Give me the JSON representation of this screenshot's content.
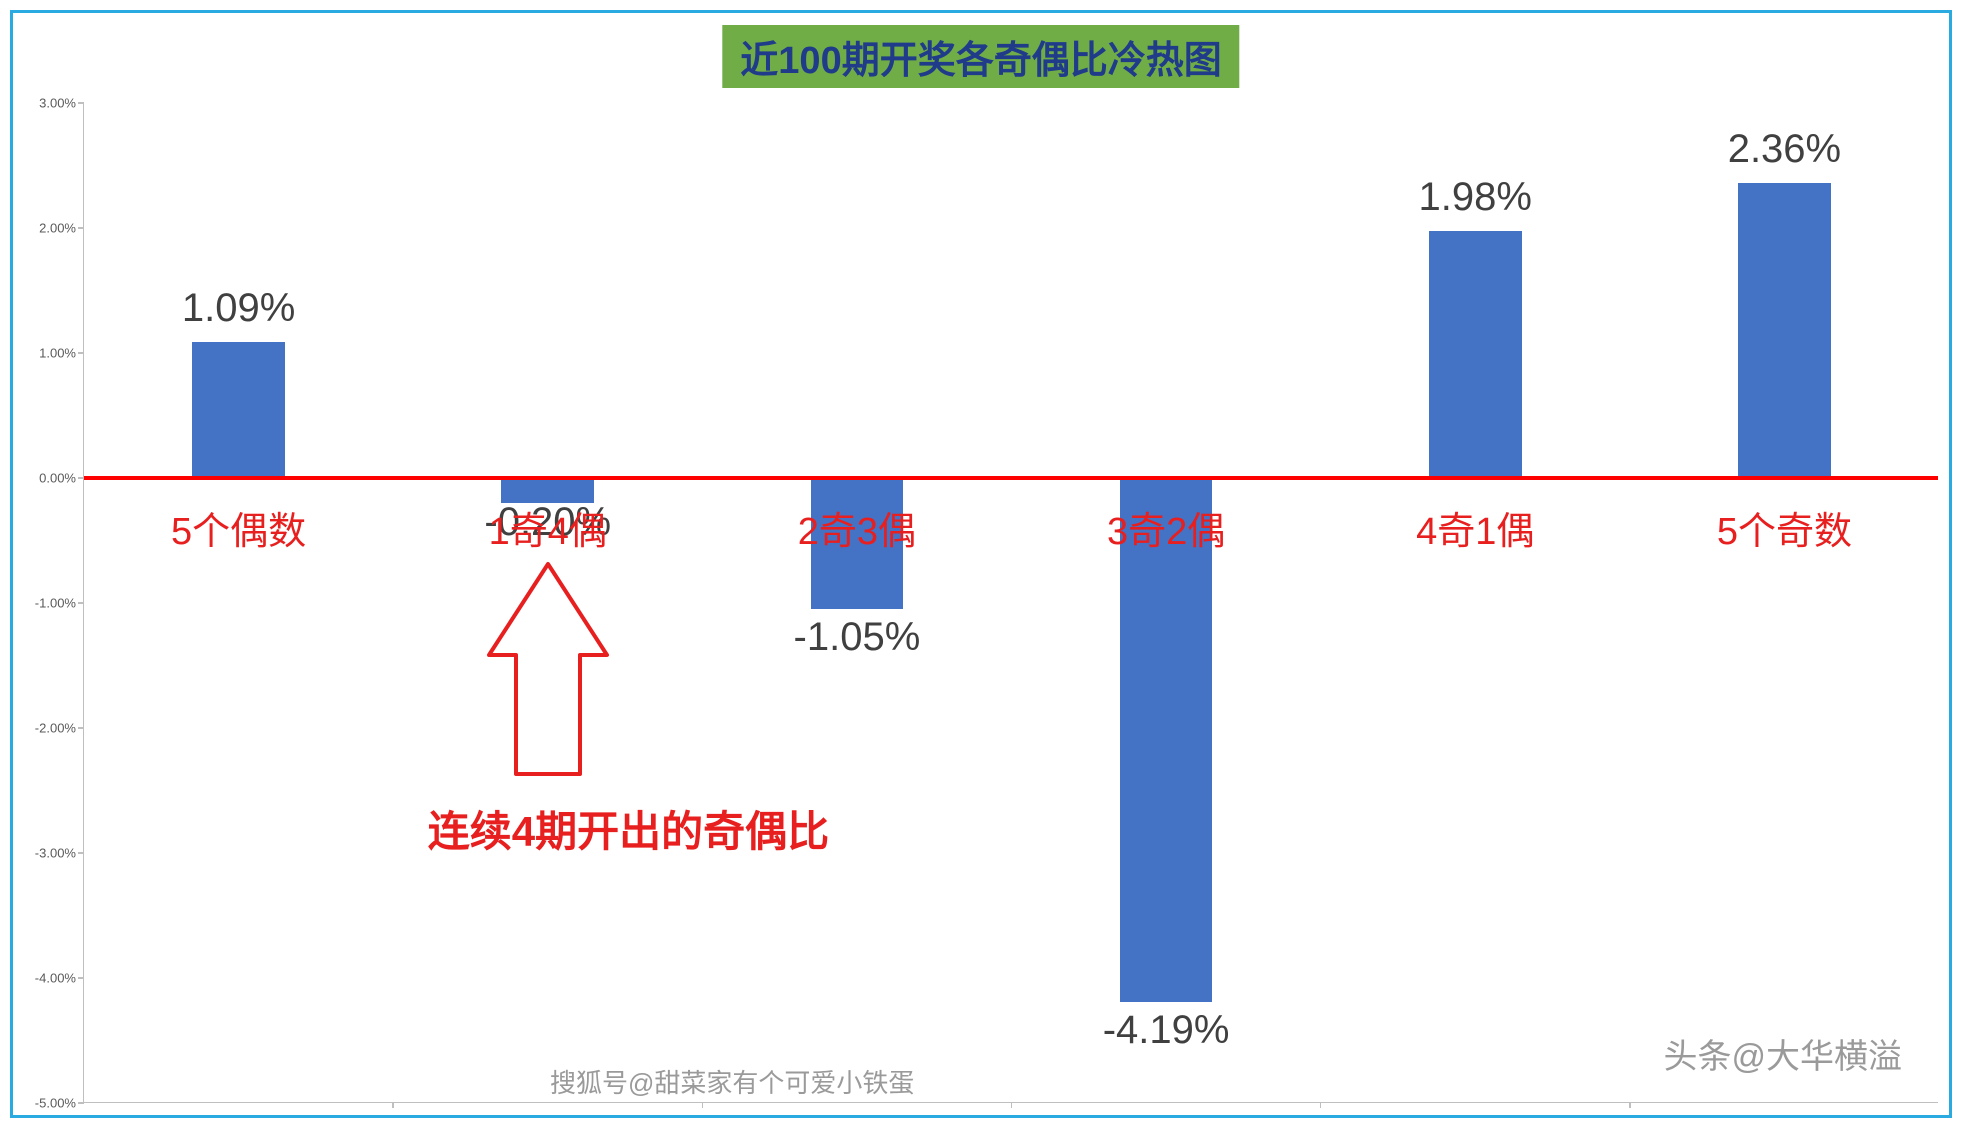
{
  "chart": {
    "type": "bar",
    "title": "近100期开奖各奇偶比冷热图",
    "title_fontsize": 38,
    "title_color": "#1f3b8a",
    "title_bg": "#70ad47",
    "border_color": "#29abe2",
    "background_color": "#ffffff",
    "categories": [
      "5个偶数",
      "1奇4偶",
      "2奇3偶",
      "3奇2偶",
      "4奇1偶",
      "5个奇数"
    ],
    "values": [
      1.09,
      -0.2,
      -1.05,
      -4.19,
      1.98,
      2.36
    ],
    "value_labels": [
      "1.09%",
      "-0.20%",
      "-1.05%",
      "-4.19%",
      "1.98%",
      "2.36%"
    ],
    "bar_color": "#4472c4",
    "bar_width_ratio": 0.3,
    "category_label_color": "#e81f1f",
    "category_label_fontsize": 38,
    "annotation": {
      "text": "连续4期开出的奇偶比",
      "color": "#e81f1f",
      "fontsize": 42,
      "arrow_target_category": "1奇4偶"
    },
    "zero_line_color": "#ff0000",
    "axis": {
      "ymin": -5.0,
      "ymax": 3.0,
      "ystep": 1.0,
      "ytick_labels": [
        "-5.00%",
        "-4.00%",
        "-3.00%",
        "-2.00%",
        "-1.00%",
        "0.00%",
        "1.00%",
        "2.00%",
        "3.00%"
      ],
      "tick_color": "#bfbfbf",
      "tick_label_color": "#595959",
      "tick_label_fontsize": 13
    },
    "grid_color": "#e0e0e0"
  },
  "watermarks": {
    "left": "搜狐号@甜菜家有个可爱小铁蛋",
    "right_prefix": "头条@",
    "right_rest": "大华横溢"
  }
}
